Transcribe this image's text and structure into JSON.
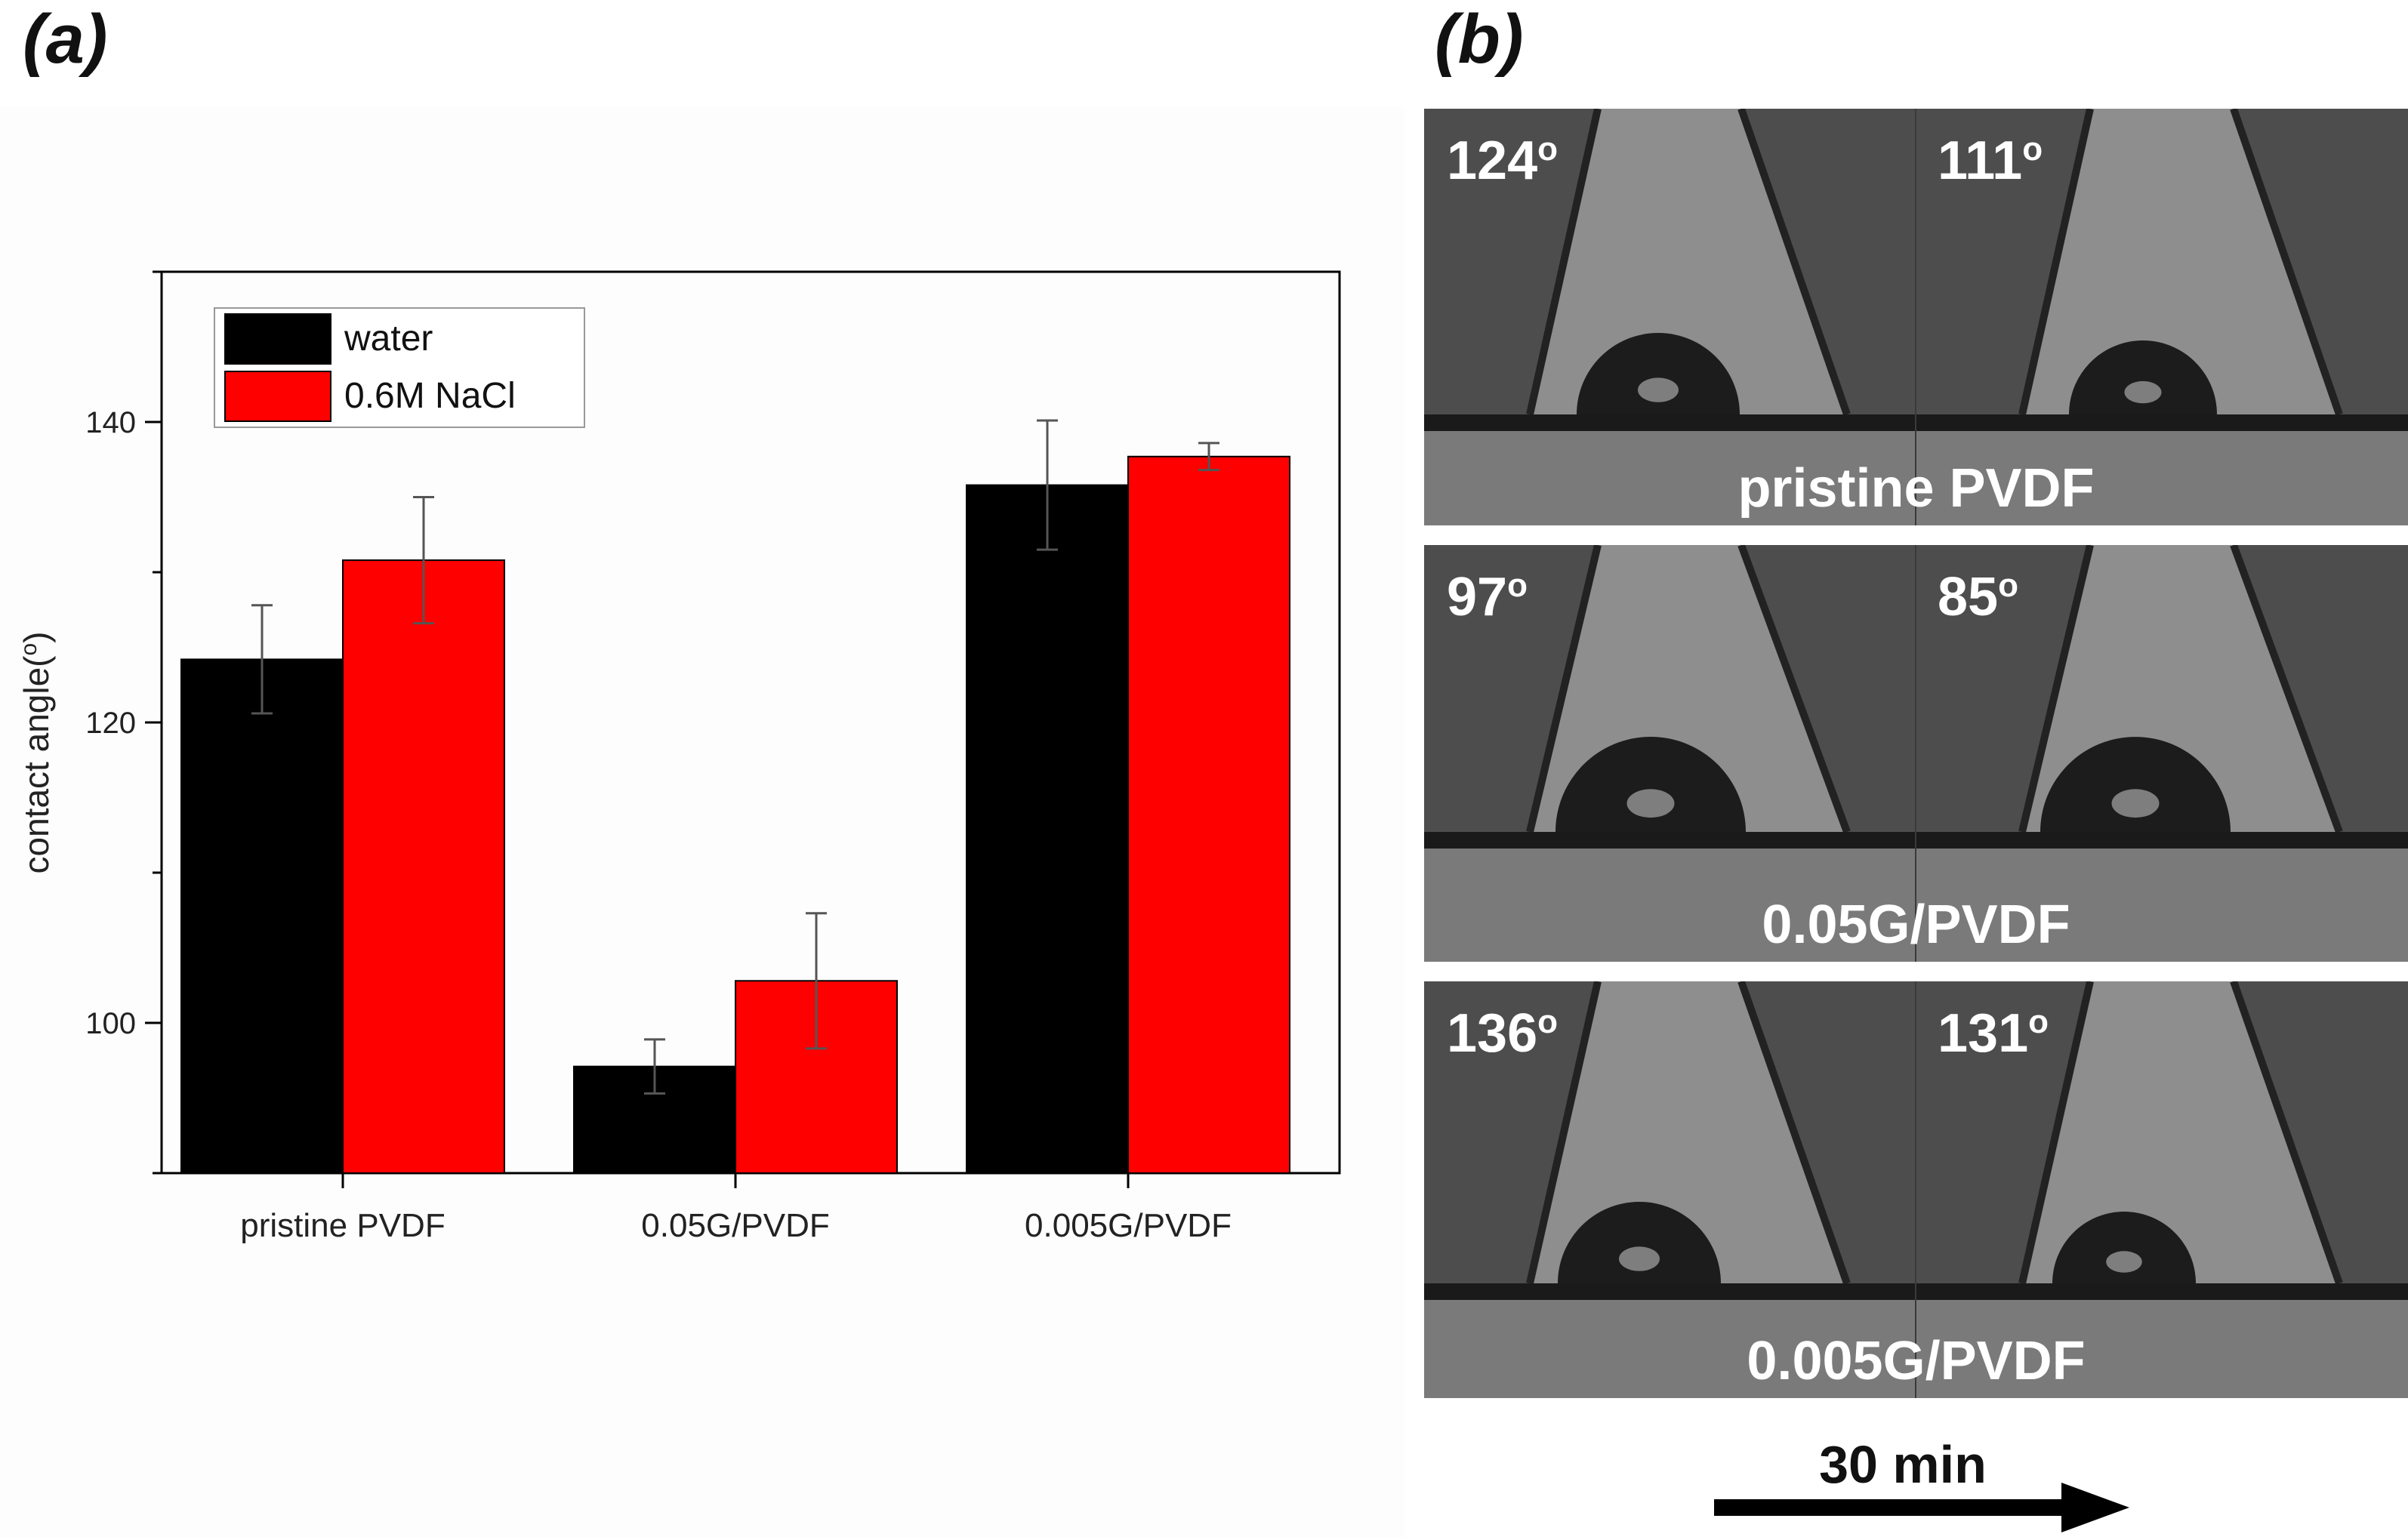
{
  "panels": {
    "a_label": "(a)",
    "b_label": "(b)"
  },
  "chart_data": {
    "type": "bar",
    "ylabel": "contact angle(o)",
    "ylabel_main": "contact angle(",
    "ylabel_sup": "o",
    "ylabel_end": ")",
    "xlabel": "",
    "ylim": [
      90,
      150
    ],
    "yticks": [
      100,
      120,
      140
    ],
    "categories": [
      "pristine PVDF",
      "0.05G/PVDF",
      "0.005G/PVDF"
    ],
    "series": [
      {
        "name": "water",
        "color": "#000000",
        "values": [
          124.2,
          97.1,
          135.8
        ],
        "errors": [
          3.6,
          1.8,
          4.3
        ]
      },
      {
        "name": "0.6M NaCl",
        "color": "#ff0000",
        "values": [
          130.8,
          102.8,
          137.7
        ],
        "errors": [
          4.2,
          4.5,
          0.9
        ]
      }
    ],
    "legend_position": "top-left"
  },
  "photos": [
    {
      "caption": "pristine PVDF",
      "angle_before": "124",
      "angle_after": "111",
      "unit": "o"
    },
    {
      "caption": "0.05G/PVDF",
      "angle_before": "97",
      "angle_after": "85",
      "unit": "o"
    },
    {
      "caption": "0.005G/PVDF",
      "angle_before": "136",
      "angle_after": "131",
      "unit": "o"
    }
  ],
  "time_arrow": {
    "label": "30 min"
  }
}
